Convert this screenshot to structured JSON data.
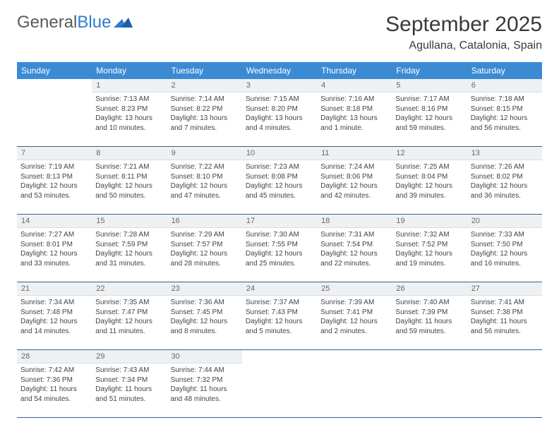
{
  "brand": {
    "name_part1": "General",
    "name_part2": "Blue"
  },
  "title": "September 2025",
  "location": "Agullana, Catalonia, Spain",
  "colors": {
    "header_bg": "#3b8bd4",
    "header_fg": "#ffffff",
    "daynum_bg": "#eef1f3",
    "daynum_fg": "#666666",
    "text": "#444444",
    "rule": "#3a5f86",
    "logo_blue": "#2b7cd3"
  },
  "weekdays": [
    "Sunday",
    "Monday",
    "Tuesday",
    "Wednesday",
    "Thursday",
    "Friday",
    "Saturday"
  ],
  "weeks": [
    [
      null,
      {
        "n": "1",
        "sr": "Sunrise: 7:13 AM",
        "ss": "Sunset: 8:23 PM",
        "d1": "Daylight: 13 hours",
        "d2": "and 10 minutes."
      },
      {
        "n": "2",
        "sr": "Sunrise: 7:14 AM",
        "ss": "Sunset: 8:22 PM",
        "d1": "Daylight: 13 hours",
        "d2": "and 7 minutes."
      },
      {
        "n": "3",
        "sr": "Sunrise: 7:15 AM",
        "ss": "Sunset: 8:20 PM",
        "d1": "Daylight: 13 hours",
        "d2": "and 4 minutes."
      },
      {
        "n": "4",
        "sr": "Sunrise: 7:16 AM",
        "ss": "Sunset: 8:18 PM",
        "d1": "Daylight: 13 hours",
        "d2": "and 1 minute."
      },
      {
        "n": "5",
        "sr": "Sunrise: 7:17 AM",
        "ss": "Sunset: 8:16 PM",
        "d1": "Daylight: 12 hours",
        "d2": "and 59 minutes."
      },
      {
        "n": "6",
        "sr": "Sunrise: 7:18 AM",
        "ss": "Sunset: 8:15 PM",
        "d1": "Daylight: 12 hours",
        "d2": "and 56 minutes."
      }
    ],
    [
      {
        "n": "7",
        "sr": "Sunrise: 7:19 AM",
        "ss": "Sunset: 8:13 PM",
        "d1": "Daylight: 12 hours",
        "d2": "and 53 minutes."
      },
      {
        "n": "8",
        "sr": "Sunrise: 7:21 AM",
        "ss": "Sunset: 8:11 PM",
        "d1": "Daylight: 12 hours",
        "d2": "and 50 minutes."
      },
      {
        "n": "9",
        "sr": "Sunrise: 7:22 AM",
        "ss": "Sunset: 8:10 PM",
        "d1": "Daylight: 12 hours",
        "d2": "and 47 minutes."
      },
      {
        "n": "10",
        "sr": "Sunrise: 7:23 AM",
        "ss": "Sunset: 8:08 PM",
        "d1": "Daylight: 12 hours",
        "d2": "and 45 minutes."
      },
      {
        "n": "11",
        "sr": "Sunrise: 7:24 AM",
        "ss": "Sunset: 8:06 PM",
        "d1": "Daylight: 12 hours",
        "d2": "and 42 minutes."
      },
      {
        "n": "12",
        "sr": "Sunrise: 7:25 AM",
        "ss": "Sunset: 8:04 PM",
        "d1": "Daylight: 12 hours",
        "d2": "and 39 minutes."
      },
      {
        "n": "13",
        "sr": "Sunrise: 7:26 AM",
        "ss": "Sunset: 8:02 PM",
        "d1": "Daylight: 12 hours",
        "d2": "and 36 minutes."
      }
    ],
    [
      {
        "n": "14",
        "sr": "Sunrise: 7:27 AM",
        "ss": "Sunset: 8:01 PM",
        "d1": "Daylight: 12 hours",
        "d2": "and 33 minutes."
      },
      {
        "n": "15",
        "sr": "Sunrise: 7:28 AM",
        "ss": "Sunset: 7:59 PM",
        "d1": "Daylight: 12 hours",
        "d2": "and 31 minutes."
      },
      {
        "n": "16",
        "sr": "Sunrise: 7:29 AM",
        "ss": "Sunset: 7:57 PM",
        "d1": "Daylight: 12 hours",
        "d2": "and 28 minutes."
      },
      {
        "n": "17",
        "sr": "Sunrise: 7:30 AM",
        "ss": "Sunset: 7:55 PM",
        "d1": "Daylight: 12 hours",
        "d2": "and 25 minutes."
      },
      {
        "n": "18",
        "sr": "Sunrise: 7:31 AM",
        "ss": "Sunset: 7:54 PM",
        "d1": "Daylight: 12 hours",
        "d2": "and 22 minutes."
      },
      {
        "n": "19",
        "sr": "Sunrise: 7:32 AM",
        "ss": "Sunset: 7:52 PM",
        "d1": "Daylight: 12 hours",
        "d2": "and 19 minutes."
      },
      {
        "n": "20",
        "sr": "Sunrise: 7:33 AM",
        "ss": "Sunset: 7:50 PM",
        "d1": "Daylight: 12 hours",
        "d2": "and 16 minutes."
      }
    ],
    [
      {
        "n": "21",
        "sr": "Sunrise: 7:34 AM",
        "ss": "Sunset: 7:48 PM",
        "d1": "Daylight: 12 hours",
        "d2": "and 14 minutes."
      },
      {
        "n": "22",
        "sr": "Sunrise: 7:35 AM",
        "ss": "Sunset: 7:47 PM",
        "d1": "Daylight: 12 hours",
        "d2": "and 11 minutes."
      },
      {
        "n": "23",
        "sr": "Sunrise: 7:36 AM",
        "ss": "Sunset: 7:45 PM",
        "d1": "Daylight: 12 hours",
        "d2": "and 8 minutes."
      },
      {
        "n": "24",
        "sr": "Sunrise: 7:37 AM",
        "ss": "Sunset: 7:43 PM",
        "d1": "Daylight: 12 hours",
        "d2": "and 5 minutes."
      },
      {
        "n": "25",
        "sr": "Sunrise: 7:39 AM",
        "ss": "Sunset: 7:41 PM",
        "d1": "Daylight: 12 hours",
        "d2": "and 2 minutes."
      },
      {
        "n": "26",
        "sr": "Sunrise: 7:40 AM",
        "ss": "Sunset: 7:39 PM",
        "d1": "Daylight: 11 hours",
        "d2": "and 59 minutes."
      },
      {
        "n": "27",
        "sr": "Sunrise: 7:41 AM",
        "ss": "Sunset: 7:38 PM",
        "d1": "Daylight: 11 hours",
        "d2": "and 56 minutes."
      }
    ],
    [
      {
        "n": "28",
        "sr": "Sunrise: 7:42 AM",
        "ss": "Sunset: 7:36 PM",
        "d1": "Daylight: 11 hours",
        "d2": "and 54 minutes."
      },
      {
        "n": "29",
        "sr": "Sunrise: 7:43 AM",
        "ss": "Sunset: 7:34 PM",
        "d1": "Daylight: 11 hours",
        "d2": "and 51 minutes."
      },
      {
        "n": "30",
        "sr": "Sunrise: 7:44 AM",
        "ss": "Sunset: 7:32 PM",
        "d1": "Daylight: 11 hours",
        "d2": "and 48 minutes."
      },
      null,
      null,
      null,
      null
    ]
  ]
}
